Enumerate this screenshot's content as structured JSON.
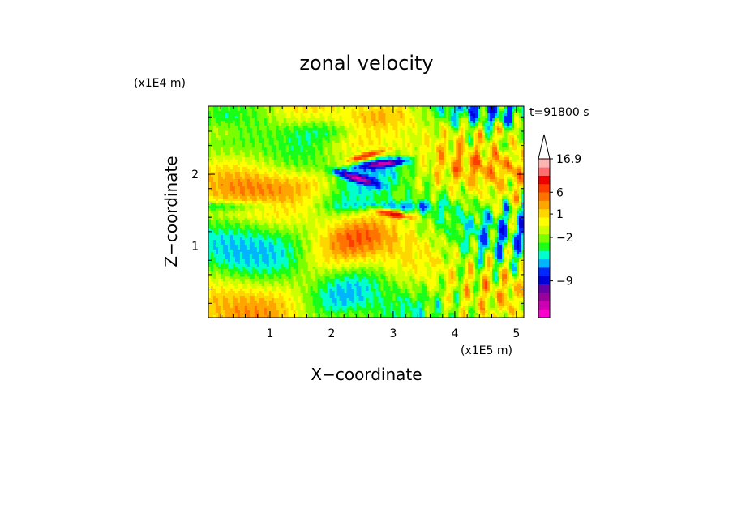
{
  "chart_data": {
    "type": "heatmap",
    "title": "zonal velocity",
    "xlabel": "X−coordinate",
    "ylabel": "Z−coordinate",
    "x_scale_label": "(x1E5 m)",
    "y_scale_label": "(x1E4 m)",
    "time_label": "t=91800 s",
    "xlim": [
      0,
      5.12
    ],
    "ylim": [
      0,
      2.95
    ],
    "x_ticks": [
      1,
      2,
      3,
      4,
      5
    ],
    "y_ticks": [
      1,
      2
    ],
    "colorbar": {
      "colors": [
        "#ff00cc",
        "#cc00b4",
        "#9b009b",
        "#6600aa",
        "#0000d8",
        "#0028ff",
        "#00b4ff",
        "#00ffcc",
        "#19ff19",
        "#7bff00",
        "#ccff00",
        "#ffff00",
        "#ffd700",
        "#ffa500",
        "#ff7300",
        "#ff3c00",
        "#ee0000",
        "#ff6e6e",
        "#ffb4b4"
      ],
      "labels": [
        {
          "value": "16.9",
          "bin": 19
        },
        {
          "value": "6",
          "bin": 15
        },
        {
          "value": "1",
          "bin": 12.4
        },
        {
          "value": "−2",
          "bin": 9.6
        },
        {
          "value": "−9",
          "bin": 4.4
        }
      ],
      "open_top_arrow": true
    },
    "field_features": [
      {
        "kind": "blue-jet",
        "x": 2.4,
        "z": 1.95,
        "dir": -0.42
      },
      {
        "kind": "blue-jet",
        "x": 2.85,
        "z": 2.15,
        "dir": 0.2
      },
      {
        "kind": "orange-band",
        "x": 2.55,
        "z": 2.25,
        "dir": 0.4
      },
      {
        "kind": "orange-band",
        "x": 3.0,
        "z": 1.45,
        "dir": -0.3
      }
    ]
  }
}
